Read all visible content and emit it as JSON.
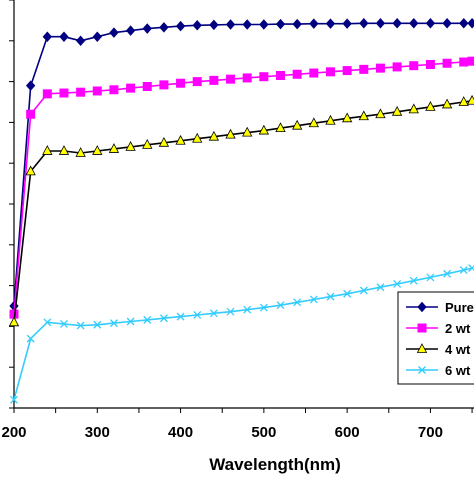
{
  "chart_data": {
    "type": "line",
    "xlabel": "Wavelength(nm)",
    "ylabel": "",
    "xlim": [
      200,
      750
    ],
    "ylim": [
      0,
      100
    ],
    "x_ticks": [
      "200",
      "300",
      "400",
      "500",
      "600",
      "700"
    ],
    "x": [
      200,
      220,
      240,
      260,
      280,
      300,
      320,
      340,
      360,
      380,
      400,
      420,
      440,
      460,
      480,
      500,
      520,
      540,
      560,
      580,
      600,
      620,
      640,
      660,
      680,
      700,
      720,
      740,
      750
    ],
    "series": [
      {
        "name": "Pure",
        "color": "#000080",
        "marker": "diamond",
        "values": [
          25,
          79,
          91,
          91,
          90,
          91,
          92,
          92.5,
          93,
          93.3,
          93.6,
          93.8,
          93.9,
          94,
          94,
          94,
          94.1,
          94.1,
          94.2,
          94.2,
          94.2,
          94.3,
          94.3,
          94.3,
          94.3,
          94.3,
          94.3,
          94.3,
          94.3
        ]
      },
      {
        "name": "2 wt",
        "color": "#ff00ff",
        "marker": "square",
        "values": [
          23,
          72,
          77,
          77.2,
          77.4,
          77.7,
          78,
          78.4,
          78.8,
          79.2,
          79.6,
          80,
          80.3,
          80.6,
          80.9,
          81.2,
          81.5,
          81.8,
          82.1,
          82.4,
          82.7,
          83,
          83.3,
          83.6,
          83.9,
          84.2,
          84.5,
          84.8,
          85
        ]
      },
      {
        "name": "4 wt",
        "color": "#000000",
        "fill": "#ffff00",
        "marker": "triangle",
        "values": [
          21,
          58,
          63,
          63,
          62.5,
          63,
          63.5,
          64,
          64.5,
          65,
          65.5,
          66,
          66.5,
          67,
          67.5,
          68,
          68.6,
          69.2,
          69.8,
          70.4,
          71,
          71.5,
          72,
          72.6,
          73.2,
          73.8,
          74.4,
          75,
          75.3
        ]
      },
      {
        "name": "6 wt",
        "color": "#33ccff",
        "marker": "x",
        "values": [
          2,
          17,
          21,
          20.6,
          20.2,
          20.4,
          20.8,
          21.2,
          21.6,
          22,
          22.4,
          22.8,
          23.2,
          23.6,
          24.1,
          24.6,
          25.2,
          25.9,
          26.6,
          27.3,
          28,
          28.8,
          29.6,
          30.4,
          31.2,
          32,
          32.9,
          33.8,
          34.3
        ]
      }
    ],
    "legend": {
      "position": "bottom-right"
    },
    "grid": false
  }
}
